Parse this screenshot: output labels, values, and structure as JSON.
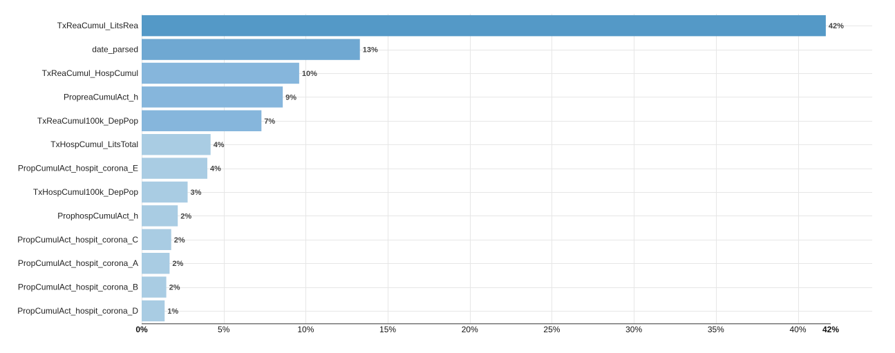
{
  "chart_data": {
    "type": "bar",
    "orientation": "horizontal",
    "title": "",
    "xlabel": "",
    "ylabel": "",
    "xlim": [
      0,
      42
    ],
    "grid": true,
    "categories": [
      "TxReaCumul_LitsRea",
      "date_parsed",
      "TxReaCumul_HospCumul",
      "PropreaCumulAct_h",
      "TxReaCumul100k_DepPop",
      "TxHospCumul_LitsTotal",
      "PropCumulAct_hospit_corona_E",
      "TxHospCumul100k_DepPop",
      "ProphospCumulAct_h",
      "PropCumulAct_hospit_corona_C",
      "PropCumulAct_hospit_corona_A",
      "PropCumulAct_hospit_corona_B",
      "PropCumulAct_hospit_corona_D"
    ],
    "values": [
      41.7,
      13.3,
      9.6,
      8.6,
      7.3,
      4.2,
      4.0,
      2.8,
      2.2,
      1.8,
      1.7,
      1.5,
      1.4
    ],
    "value_labels": [
      "42%",
      "13%",
      "10%",
      "9%",
      "7%",
      "4%",
      "4%",
      "3%",
      "2%",
      "2%",
      "2%",
      "2%",
      "1%"
    ],
    "x_ticks": [
      0,
      5,
      10,
      15,
      20,
      25,
      30,
      35,
      40,
      42
    ],
    "x_tick_labels": [
      "0%",
      "5%",
      "10%",
      "15%",
      "20%",
      "25%",
      "30%",
      "35%",
      "40%",
      "42%"
    ],
    "bold_ticks": [
      "0%",
      "42%"
    ],
    "colors": {
      "top": "#5499c7",
      "mid1": "#6fa8d2",
      "mid2": "#86b6dc",
      "low": "#a9cce3",
      "gridline": "#e6e6e6",
      "axis": "#333333"
    },
    "color_levels": [
      "top",
      "mid1",
      "mid2",
      "mid2",
      "mid2",
      "low",
      "low",
      "low",
      "low",
      "low",
      "low",
      "low",
      "low"
    ]
  }
}
